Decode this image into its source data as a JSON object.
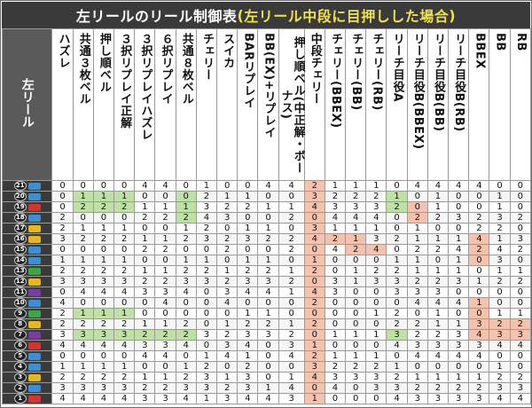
{
  "title": {
    "prefix": "左リールのリール制御表",
    "highlight_open": "(",
    "highlight": "左リール中段に目押しした場合",
    "highlight_close": ")"
  },
  "corner_label": "左リール",
  "symbol_colors": {
    "blue": "#3a8fd6",
    "red": "#d6332f",
    "yellow": "#e8b81a",
    "green": "#3aa84a",
    "purple": "#7a3aa8"
  },
  "columns": [
    "ハズレ",
    "共通３枚ベル",
    "押し順ベル",
    "３択リプレイ正解",
    "３択リプレイハズレ",
    "６択リプレイ",
    "共通８枚ベル",
    "チェリー",
    "スイカ",
    "BARリプレイ",
    "BB(EX)+リプレイ",
    "押し順ベル(中正解・ボーナス)",
    "中段チェリー",
    "チェリー(BBEX)",
    "チェリー(BB)",
    "チェリー(RB)",
    "リーチ目役A",
    "リーチ目役B(BBEX)",
    "リーチ目役B(BB)",
    "リーチ目役B(RB)",
    "BBEX",
    "BB",
    "RB"
  ],
  "rows": [
    {
      "num": "21",
      "sym": "blue",
      "values": [
        "0",
        "0",
        "0",
        "0",
        "4",
        "4",
        "0",
        "1",
        "0",
        "0",
        "4",
        "4",
        "2",
        "1",
        "1",
        "1",
        "0",
        "4",
        "4",
        "4",
        "4",
        "0",
        "0"
      ]
    },
    {
      "num": "20",
      "sym": "blue",
      "values": [
        "0",
        "1",
        "1",
        "1",
        "0",
        "0",
        "0",
        "2",
        "1",
        "1",
        "0",
        "0",
        "3",
        "2",
        "2",
        "2",
        "1",
        "0",
        "1",
        "0",
        "0",
        "1",
        "0"
      ]
    },
    {
      "num": "19",
      "sym": "red",
      "values": [
        "0",
        "2",
        "2",
        "2",
        "1",
        "1",
        "1",
        "3",
        "2",
        "2",
        "1",
        "1",
        "4",
        "3",
        "3",
        "3",
        "2",
        "0",
        "1",
        "0",
        "0",
        "1",
        "0"
      ]
    },
    {
      "num": "18",
      "sym": "blue",
      "values": [
        "2",
        "0",
        "0",
        "0",
        "2",
        "2",
        "2",
        "4",
        "3",
        "0",
        "0",
        "2",
        "0",
        "4",
        "4",
        "4",
        "0",
        "2",
        "2",
        "3",
        "2",
        "3",
        "2"
      ]
    },
    {
      "num": "17",
      "sym": "yellow",
      "values": [
        "2",
        "1",
        "1",
        "1",
        "0",
        "0",
        "1",
        "2",
        "0",
        "1",
        "1",
        "0",
        "3",
        "1",
        "1",
        "1",
        "0",
        "1",
        "0",
        "0",
        "2",
        "2",
        "0"
      ]
    },
    {
      "num": "16",
      "sym": "yellow",
      "values": [
        "3",
        "2",
        "2",
        "2",
        "1",
        "1",
        "2",
        "3",
        "2",
        "3",
        "2",
        "2",
        "4",
        "2",
        "1",
        "3",
        "2",
        "1",
        "1",
        "1",
        "4",
        "1",
        "3"
      ]
    },
    {
      "num": "15",
      "sym": "blue",
      "values": [
        "0",
        "0",
        "0",
        "0",
        "2",
        "2",
        "0",
        "0",
        "2",
        "0",
        "0",
        "2",
        "0",
        "4",
        "2",
        "4",
        "0",
        "2",
        "2",
        "4",
        "2",
        "4",
        "2"
      ]
    },
    {
      "num": "14",
      "sym": "blue",
      "values": [
        "1",
        "1",
        "1",
        "1",
        "0",
        "0",
        "1",
        "1",
        "0",
        "1",
        "1",
        "0",
        "1",
        "0",
        "0",
        "0",
        "1",
        "1",
        "0",
        "1",
        "0",
        "3",
        "0"
      ]
    },
    {
      "num": "13",
      "sym": "green",
      "values": [
        "2",
        "2",
        "2",
        "2",
        "1",
        "1",
        "2",
        "2",
        "1",
        "2",
        "2",
        "1",
        "2",
        "0",
        "1",
        "2",
        "2",
        "1",
        "1",
        "1",
        "0",
        "1",
        "1"
      ]
    },
    {
      "num": "12",
      "sym": "yellow",
      "values": [
        "3",
        "3",
        "3",
        "3",
        "2",
        "2",
        "3",
        "3",
        "2",
        "3",
        "3",
        "2",
        "0",
        "3",
        "1",
        "3",
        "3",
        "2",
        "2",
        "3",
        "1",
        "2",
        "2"
      ]
    },
    {
      "num": "11",
      "sym": "purple",
      "values": [
        "0",
        "4",
        "4",
        "4",
        "3",
        "3",
        "4",
        "0",
        "3",
        "4",
        "4",
        "1",
        "4",
        "3",
        "0",
        "0",
        "3",
        "3",
        "3",
        "0",
        "0",
        "0",
        "0"
      ]
    },
    {
      "num": "10",
      "sym": "blue",
      "values": [
        "4",
        "0",
        "0",
        "0",
        "0",
        "4",
        "0",
        "0",
        "4",
        "0",
        "0",
        "0",
        "2",
        "0",
        "0",
        "0",
        "0",
        "4",
        "4",
        "4",
        "1",
        "0",
        "0"
      ]
    },
    {
      "num": "9",
      "sym": "green",
      "values": [
        "2",
        "1",
        "1",
        "1",
        "0",
        "0",
        "0",
        "0",
        "0",
        "1",
        "1",
        "0",
        "0",
        "0",
        "0",
        "1",
        "2",
        "0",
        "1",
        "0",
        "0",
        "1",
        "1"
      ]
    },
    {
      "num": "8",
      "sym": "yellow",
      "values": [
        "2",
        "2",
        "2",
        "2",
        "1",
        "1",
        "2",
        "0",
        "1",
        "2",
        "2",
        "1",
        "2",
        "0",
        "0",
        "0",
        "2",
        "2",
        "1",
        "1",
        "3",
        "2",
        "2"
      ]
    },
    {
      "num": "7",
      "sym": "purple",
      "values": [
        "3",
        "3",
        "3",
        "3",
        "2",
        "2",
        "2",
        "3",
        "2",
        "3",
        "3",
        "2",
        "0",
        "1",
        "1",
        "1",
        "3",
        "2",
        "2",
        "3",
        "4",
        "3",
        "3"
      ]
    },
    {
      "num": "6",
      "sym": "red",
      "values": [
        "4",
        "4",
        "4",
        "4",
        "3",
        "3",
        "4",
        "0",
        "3",
        "4",
        "0",
        "3",
        "1",
        "0",
        "0",
        "0",
        "4",
        "3",
        "3",
        "3",
        "3",
        "4",
        "4"
      ]
    },
    {
      "num": "5",
      "sym": "blue",
      "values": [
        "0",
        "0",
        "0",
        "0",
        "4",
        "4",
        "0",
        "1",
        "4",
        "1",
        "0",
        "4",
        "2",
        "1",
        "1",
        "1",
        "0",
        "4",
        "4",
        "4",
        "4",
        "0",
        "0"
      ]
    },
    {
      "num": "4",
      "sym": "blue",
      "values": [
        "1",
        "1",
        "1",
        "1",
        "0",
        "0",
        "1",
        "2",
        "0",
        "2",
        "0",
        "0",
        "3",
        "2",
        "2",
        "2",
        "1",
        "0",
        "0",
        "0",
        "0",
        "1",
        "0"
      ]
    },
    {
      "num": "3",
      "sym": "yellow",
      "values": [
        "2",
        "2",
        "2",
        "2",
        "1",
        "1",
        "2",
        "3",
        "1",
        "3",
        "0",
        "1",
        "4",
        "3",
        "3",
        "3",
        "2",
        "1",
        "1",
        "1",
        "1",
        "2",
        "2"
      ]
    },
    {
      "num": "2",
      "sym": "blue",
      "values": [
        "3",
        "3",
        "3",
        "3",
        "2",
        "2",
        "3",
        "3",
        "2",
        "3",
        "1",
        "4",
        "0",
        "4",
        "0",
        "3",
        "3",
        "2",
        "2",
        "2",
        "2",
        "3",
        "3"
      ]
    },
    {
      "num": "1",
      "sym": "red",
      "values": [
        "4",
        "4",
        "4",
        "4",
        "3",
        "3",
        "4",
        "1",
        "3",
        "4",
        "4",
        "3",
        "1",
        "0",
        "0",
        "0",
        "4",
        "3",
        "3",
        "3",
        "3",
        "4",
        "4"
      ]
    }
  ],
  "highlights": {
    "green": [
      [
        1,
        1
      ],
      [
        1,
        2
      ],
      [
        1,
        3
      ],
      [
        2,
        1
      ],
      [
        2,
        2
      ],
      [
        2,
        3
      ],
      [
        2,
        6
      ],
      [
        1,
        6
      ],
      [
        2,
        16
      ],
      [
        1,
        16
      ],
      [
        3,
        6
      ],
      [
        12,
        1
      ],
      [
        12,
        2
      ],
      [
        12,
        3
      ],
      [
        14,
        1
      ],
      [
        14,
        2
      ],
      [
        14,
        3
      ],
      [
        14,
        4
      ],
      [
        14,
        5
      ],
      [
        14,
        6
      ],
      [
        14,
        16
      ]
    ],
    "pink": [
      [
        0,
        12
      ],
      [
        1,
        12
      ],
      [
        2,
        12
      ],
      [
        3,
        12
      ],
      [
        4,
        12
      ],
      [
        5,
        12
      ],
      [
        6,
        12
      ],
      [
        7,
        12
      ],
      [
        8,
        12
      ],
      [
        9,
        12
      ],
      [
        10,
        12
      ],
      [
        11,
        12
      ],
      [
        12,
        12
      ],
      [
        13,
        12
      ],
      [
        14,
        12
      ],
      [
        15,
        12
      ],
      [
        16,
        12
      ],
      [
        17,
        12
      ],
      [
        18,
        12
      ],
      [
        19,
        12
      ],
      [
        20,
        12
      ],
      [
        2,
        17
      ],
      [
        3,
        17
      ],
      [
        5,
        20
      ],
      [
        6,
        20
      ],
      [
        7,
        20
      ],
      [
        11,
        20
      ],
      [
        12,
        20
      ],
      [
        13,
        20
      ],
      [
        14,
        20
      ],
      [
        6,
        14
      ],
      [
        6,
        15
      ],
      [
        5,
        14
      ],
      [
        5,
        13
      ],
      [
        14,
        21
      ],
      [
        14,
        22
      ],
      [
        13,
        21
      ],
      [
        13,
        22
      ]
    ]
  }
}
